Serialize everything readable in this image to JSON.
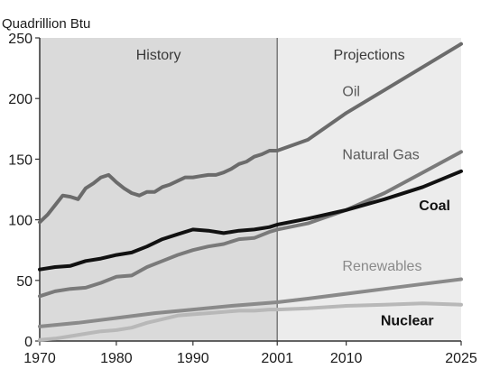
{
  "chart_data": {
    "type": "line",
    "title": "",
    "ylabel": "Quadrillion Btu",
    "xlabel": "",
    "ylim": [
      0,
      250
    ],
    "xlim": [
      1970,
      2025
    ],
    "grid": false,
    "divider_year": 2001,
    "y_ticks": [
      0,
      50,
      100,
      150,
      200,
      250
    ],
    "x_ticks": [
      1970,
      1980,
      1990,
      2001,
      2010,
      2025
    ],
    "regions": [
      {
        "label": "History",
        "from": 1970,
        "to": 2001,
        "shade": "#dadada"
      },
      {
        "label": "Projections",
        "from": 2001,
        "to": 2025,
        "shade": "#ececec"
      }
    ],
    "series": [
      {
        "name": "Oil",
        "color": "#6b6b6b",
        "x": [
          1970,
          1971,
          1972,
          1973,
          1974,
          1975,
          1976,
          1977,
          1978,
          1979,
          1980,
          1981,
          1982,
          1983,
          1984,
          1985,
          1986,
          1987,
          1988,
          1989,
          1990,
          1991,
          1992,
          1993,
          1994,
          1995,
          1996,
          1997,
          1998,
          1999,
          2000,
          2001,
          2005,
          2010,
          2015,
          2020,
          2025
        ],
        "y": [
          98,
          104,
          112,
          120,
          119,
          117,
          126,
          130,
          135,
          137,
          131,
          126,
          122,
          120,
          123,
          123,
          127,
          129,
          132,
          135,
          135,
          136,
          137,
          137,
          139,
          142,
          146,
          148,
          152,
          154,
          157,
          157,
          166,
          188,
          207,
          226,
          245
        ]
      },
      {
        "name": "Natural Gas",
        "color": "#7a7a7a",
        "x": [
          1970,
          1972,
          1974,
          1976,
          1978,
          1980,
          1982,
          1984,
          1986,
          1988,
          1990,
          1992,
          1994,
          1996,
          1998,
          2000,
          2001,
          2005,
          2010,
          2015,
          2020,
          2025
        ],
        "y": [
          37,
          41,
          43,
          44,
          48,
          53,
          54,
          61,
          66,
          71,
          75,
          78,
          80,
          84,
          85,
          90,
          92,
          97,
          108,
          122,
          139,
          156
        ]
      },
      {
        "name": "Coal",
        "color": "#111111",
        "x": [
          1970,
          1972,
          1974,
          1976,
          1978,
          1980,
          1982,
          1984,
          1986,
          1988,
          1990,
          1992,
          1994,
          1996,
          1998,
          2000,
          2001,
          2005,
          2010,
          2015,
          2020,
          2025
        ],
        "y": [
          59,
          61,
          62,
          66,
          68,
          71,
          73,
          78,
          84,
          88,
          92,
          91,
          89,
          91,
          92,
          94,
          96,
          101,
          108,
          117,
          127,
          140
        ]
      },
      {
        "name": "Renewables",
        "color": "#8a8a8a",
        "x": [
          1970,
          1975,
          1980,
          1985,
          1990,
          1995,
          2001,
          2005,
          2010,
          2015,
          2020,
          2025
        ],
        "y": [
          12,
          15,
          19,
          23,
          26,
          29,
          32,
          35,
          39,
          43,
          47,
          51
        ]
      },
      {
        "name": "Nuclear",
        "color": "#b8b8b8",
        "x": [
          1970,
          1972,
          1974,
          1976,
          1978,
          1980,
          1982,
          1984,
          1986,
          1988,
          1990,
          1992,
          1994,
          1996,
          1998,
          2000,
          2001,
          2005,
          2010,
          2015,
          2020,
          2025
        ],
        "y": [
          1,
          2,
          4,
          6,
          8,
          9,
          11,
          15,
          18,
          21,
          22,
          23,
          24,
          25,
          25,
          26,
          26,
          27,
          29,
          30,
          31,
          30
        ]
      }
    ],
    "series_labels": [
      {
        "series": "Oil",
        "text": "Oil",
        "at_x": 2009.5,
        "at_y": 202,
        "color": "#5a5a5a"
      },
      {
        "series": "Natural Gas",
        "text": "Natural Gas",
        "at_x": 2009.5,
        "at_y": 150,
        "color": "#5a5a5a"
      },
      {
        "series": "Coal",
        "text": "Coal",
        "at_x": 2019.5,
        "at_y": 108,
        "color": "#111111"
      },
      {
        "series": "Renewables",
        "text": "Renewables",
        "at_x": 2009.5,
        "at_y": 58,
        "color": "#8a8a8a"
      },
      {
        "series": "Nuclear",
        "text": "Nuclear",
        "at_x": 2014.5,
        "at_y": 13,
        "color": "#111111"
      }
    ]
  }
}
